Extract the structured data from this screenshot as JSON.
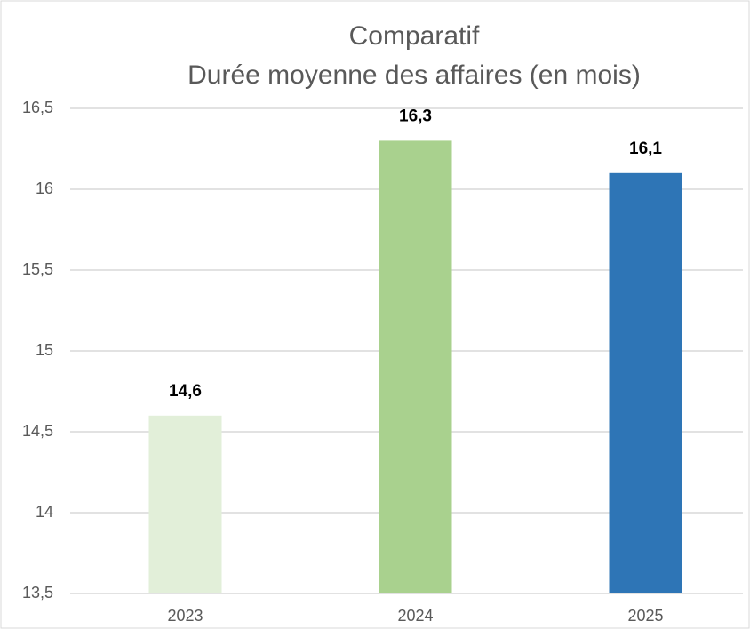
{
  "chart_data": {
    "type": "bar",
    "title": "Comparatif",
    "subtitle": "Durée moyenne des affaires (en mois)",
    "categories": [
      "2023",
      "2024",
      "2025"
    ],
    "values": [
      14.6,
      16.3,
      16.1
    ],
    "value_labels": [
      "14,6",
      "16,3",
      "16,1"
    ],
    "colors": [
      "#e2efd9",
      "#a9d18e",
      "#2e75b6"
    ],
    "ylim": [
      13.5,
      16.5
    ],
    "yticks": [
      {
        "value": 13.5,
        "label": "13,5"
      },
      14,
      {
        "value": 14.5,
        "label": "14,5"
      },
      15,
      {
        "value": 15.5,
        "label": "15,5"
      },
      16,
      {
        "value": 16.5,
        "label": "16,5"
      }
    ],
    "grid": true
  }
}
